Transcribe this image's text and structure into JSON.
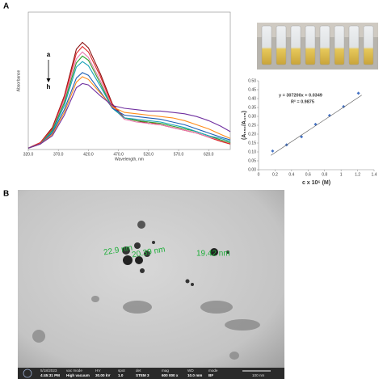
{
  "figure": {
    "panel_labels": [
      "A",
      "B"
    ]
  },
  "chart_data": [
    {
      "type": "line",
      "xlabel": "Wavelength, nm",
      "ylabel": "Absorbance",
      "annotations": [
        "a",
        "h"
      ],
      "x": [
        320,
        340,
        360,
        380,
        400,
        410,
        420,
        440,
        460,
        480,
        500,
        520,
        540,
        560,
        580,
        600,
        620,
        640,
        656
      ],
      "xlim": [
        320,
        656
      ],
      "xticks": [
        {
          "value": 320,
          "label": "320.0"
        },
        {
          "value": 370,
          "label": "370.0"
        },
        {
          "value": 420,
          "label": "420.0"
        },
        {
          "value": 470,
          "label": "470.0"
        },
        {
          "value": 520,
          "label": "520.0"
        },
        {
          "value": 570,
          "label": "570.0"
        },
        {
          "value": 620,
          "label": "620.0"
        }
      ],
      "ylim": [
        0,
        1
      ],
      "series": [
        {
          "color": "#8b1010",
          "values": [
            0.01,
            0.05,
            0.16,
            0.39,
            0.73,
            0.78,
            0.74,
            0.55,
            0.33,
            0.23,
            0.21,
            0.19,
            0.18,
            0.16,
            0.14,
            0.12,
            0.09,
            0.06,
            0.04
          ]
        },
        {
          "color": "#e02828",
          "values": [
            0.01,
            0.05,
            0.15,
            0.38,
            0.7,
            0.75,
            0.71,
            0.53,
            0.32,
            0.23,
            0.21,
            0.2,
            0.18,
            0.16,
            0.14,
            0.12,
            0.09,
            0.06,
            0.04
          ]
        },
        {
          "color": "#e87bb0",
          "values": [
            0.01,
            0.04,
            0.14,
            0.36,
            0.66,
            0.71,
            0.67,
            0.5,
            0.31,
            0.22,
            0.2,
            0.19,
            0.18,
            0.16,
            0.14,
            0.12,
            0.09,
            0.07,
            0.05
          ]
        },
        {
          "color": "#2ca02c",
          "values": [
            0.01,
            0.04,
            0.14,
            0.34,
            0.63,
            0.68,
            0.65,
            0.48,
            0.3,
            0.23,
            0.21,
            0.2,
            0.19,
            0.17,
            0.15,
            0.13,
            0.1,
            0.07,
            0.05
          ]
        },
        {
          "color": "#17a2b8",
          "values": [
            0.01,
            0.04,
            0.13,
            0.32,
            0.6,
            0.64,
            0.61,
            0.46,
            0.3,
            0.23,
            0.22,
            0.21,
            0.2,
            0.18,
            0.16,
            0.13,
            0.1,
            0.08,
            0.06
          ]
        },
        {
          "color": "#1f5fb4",
          "values": [
            0.01,
            0.04,
            0.12,
            0.29,
            0.52,
            0.56,
            0.54,
            0.42,
            0.3,
            0.25,
            0.24,
            0.23,
            0.22,
            0.2,
            0.18,
            0.15,
            0.12,
            0.09,
            0.07
          ]
        },
        {
          "color": "#ff8c1a",
          "values": [
            0.01,
            0.04,
            0.11,
            0.27,
            0.49,
            0.53,
            0.51,
            0.41,
            0.31,
            0.27,
            0.26,
            0.25,
            0.24,
            0.23,
            0.21,
            0.18,
            0.15,
            0.11,
            0.08
          ]
        },
        {
          "color": "#7030a0",
          "values": [
            0.01,
            0.04,
            0.1,
            0.25,
            0.45,
            0.48,
            0.47,
            0.39,
            0.32,
            0.3,
            0.29,
            0.28,
            0.28,
            0.27,
            0.26,
            0.24,
            0.21,
            0.17,
            0.13
          ]
        }
      ]
    },
    {
      "type": "scatter",
      "xlabel": "c x 10⁶ (M)",
      "ylabel": "(A₅₅₀/A₄₀₅)",
      "annotations": [
        "y = 307200x + 0.0349",
        "R² = 0.9875"
      ],
      "xlim": [
        0,
        1.4
      ],
      "xticks": [
        0,
        0.2,
        0.4,
        0.6,
        0.8,
        1,
        1.2,
        1.4
      ],
      "ylim": [
        0,
        0.5
      ],
      "yticks": [
        {
          "value": 0,
          "label": "0.00"
        },
        {
          "value": 0.05,
          "label": "0.05"
        },
        {
          "value": 0.1,
          "label": "0.10"
        },
        {
          "value": 0.15,
          "label": "0.15"
        },
        {
          "value": 0.2,
          "label": "0.20"
        },
        {
          "value": 0.25,
          "label": "0.25"
        },
        {
          "value": 0.3,
          "label": "0.30"
        },
        {
          "value": 0.35,
          "label": "0.35"
        },
        {
          "value": 0.4,
          "label": "0.40"
        },
        {
          "value": 0.45,
          "label": "0.45"
        },
        {
          "value": 0.5,
          "label": "0.50"
        }
      ],
      "series": [
        {
          "color": "#4472c4",
          "mode": "markers",
          "x": [
            0.17,
            0.34,
            0.52,
            0.69,
            0.86,
            1.03,
            1.21
          ],
          "values": [
            0.105,
            0.14,
            0.185,
            0.255,
            0.305,
            0.355,
            0.43
          ]
        },
        {
          "color": "#555555",
          "mode": "line",
          "x": [
            0.15,
            1.25
          ],
          "values": [
            0.081,
            0.419
          ]
        }
      ]
    }
  ],
  "tem_image": {
    "measurements": [
      "22.9 nm",
      "20.39 nm",
      "19.42 nm"
    ],
    "info_bar": [
      "5/18/2023",
      "4:45:31 PM",
      "vac mode",
      "High vacuum",
      "HV",
      "30.00 kV",
      "spot",
      "1.0",
      "det",
      "STEM 3",
      "mag",
      "600 000 x",
      "WD",
      "10.0 mm",
      "mode",
      "BF"
    ],
    "scale_bar": "100 nm"
  }
}
